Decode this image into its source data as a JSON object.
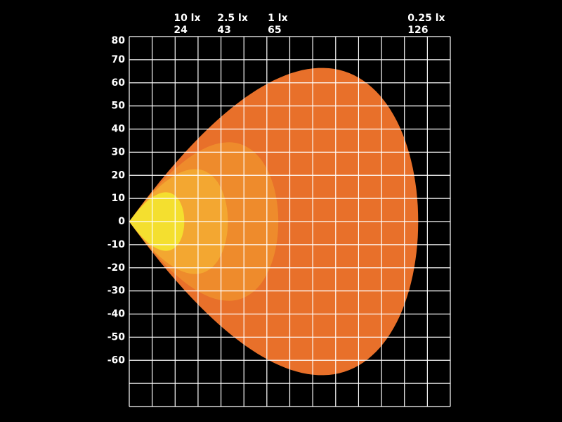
{
  "chart_data": {
    "type": "isolux",
    "series": [
      {
        "name": "0.25 lx",
        "value": 126,
        "color": "#e8702a"
      },
      {
        "name": "1 lx",
        "value": 65,
        "color": "#ee8b2c"
      },
      {
        "name": "2.5 lx",
        "value": 43,
        "color": "#f3a731"
      },
      {
        "name": "10 lx",
        "value": 24,
        "color": "#f4df2f"
      }
    ],
    "xlim": [
      0,
      140
    ],
    "ylim": [
      -80,
      80
    ],
    "yticks": [
      80,
      70,
      60,
      50,
      40,
      30,
      20,
      10,
      0,
      -10,
      -20,
      -30,
      -40,
      -50,
      -60
    ],
    "grid": true,
    "grid_step": 10
  }
}
